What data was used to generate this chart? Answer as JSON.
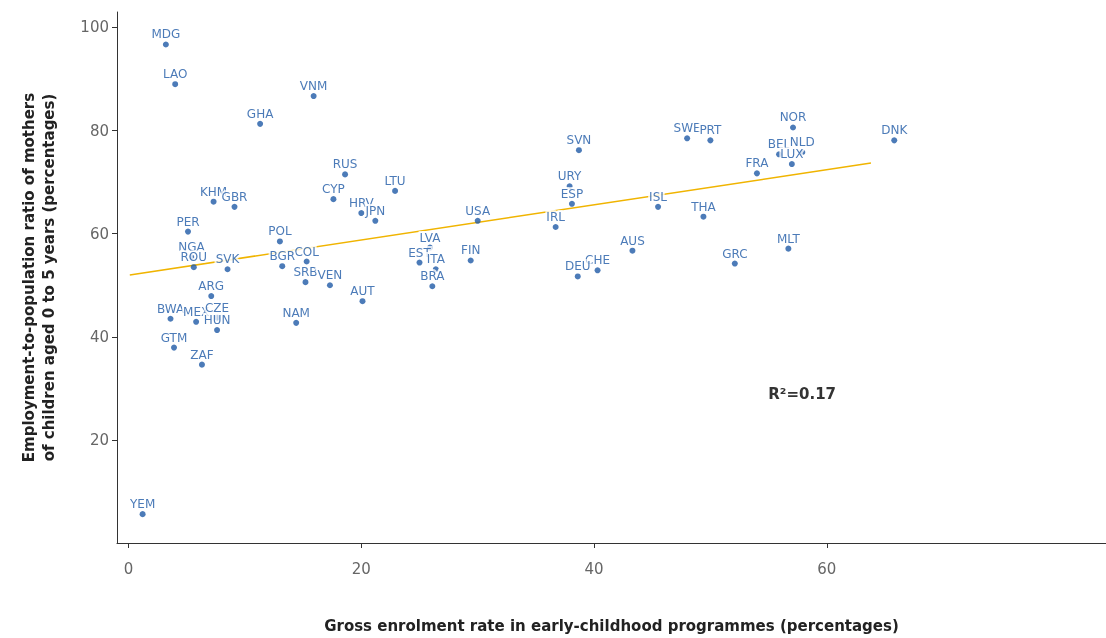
{
  "chart_data": {
    "type": "scatter",
    "xlabel": "Gross enrolment rate in early-childhood programmes (percentages)",
    "ylabel": "Employment-to-population ratio of mothers\nof children aged 0 to 5 years (percentages)",
    "xlim": [
      -1,
      84
    ],
    "xticks": [
      0,
      20,
      40,
      60
    ],
    "ylim": [
      0,
      103
    ],
    "yticks": [
      20,
      40,
      60,
      80,
      100
    ],
    "grid": false,
    "annotations": [
      "R²=0.17"
    ],
    "series": [
      {
        "color": "#1f5aa6",
        "marker": "circle",
        "x": [
          3.2,
          4.0,
          15.9,
          11.3,
          38.7,
          48.0,
          50.0,
          57.1,
          65.8,
          55.9,
          57.9,
          57.0,
          54.0,
          18.6,
          22.9,
          17.6,
          37.9,
          38.1,
          45.5,
          49.4,
          7.3,
          9.1,
          20.0,
          21.2,
          30.0,
          36.7,
          5.1,
          13.0,
          25.9,
          43.3,
          56.7,
          5.4,
          15.3,
          29.4,
          25.0,
          52.1,
          5.6,
          8.5,
          13.2,
          26.4,
          40.3,
          38.6,
          15.2,
          17.3,
          26.1,
          7.1,
          20.1,
          3.6,
          5.8,
          7.6,
          7.6,
          14.4,
          3.9,
          6.3,
          1.2
        ],
        "values": [
          96.7,
          89.0,
          86.7,
          81.3,
          76.2,
          78.5,
          78.1,
          80.6,
          78.1,
          75.4,
          75.8,
          73.5,
          71.7,
          71.5,
          68.3,
          66.7,
          69.2,
          65.8,
          65.2,
          63.3,
          66.2,
          65.2,
          64.0,
          62.5,
          62.5,
          61.3,
          60.4,
          58.5,
          57.3,
          56.7,
          57.1,
          55.4,
          54.6,
          54.8,
          54.4,
          54.2,
          53.5,
          53.1,
          53.7,
          53.1,
          52.9,
          51.7,
          50.6,
          50.0,
          49.8,
          47.9,
          46.9,
          43.5,
          42.9,
          43.7,
          41.3,
          42.7,
          37.9,
          34.6,
          5.6
        ],
        "value_labels": [
          "MDG",
          "LAO",
          "VNM",
          "GHA",
          "SVN",
          "SWE",
          "PRT",
          "NOR",
          "DNK",
          "BEL",
          "NLD",
          "LUX",
          "FRA",
          "RUS",
          "LTU",
          "CYP",
          "URY",
          "ESP",
          "ISL",
          "THA",
          "KHM",
          "GBR",
          "HRV",
          "JPN",
          "USA",
          "IRL",
          "PER",
          "POL",
          "LVA",
          "AUS",
          "MLT",
          "NGA",
          "COL",
          "FIN",
          "EST",
          "GRC",
          "ROU",
          "SVK",
          "BGR",
          "ITA",
          "CHE",
          "DEU",
          "SRB",
          "VEN",
          "BRA",
          "ARG",
          "AUT",
          "BWA",
          "MEX",
          "CZE",
          "HUN",
          "NAM",
          "GTM",
          "ZAF",
          "YEM"
        ]
      },
      {
        "type": "line",
        "marker": "none",
        "color": "#f0b400",
        "x": [
          0.1,
          63.8
        ],
        "values": [
          52,
          73.7
        ]
      }
    ]
  }
}
